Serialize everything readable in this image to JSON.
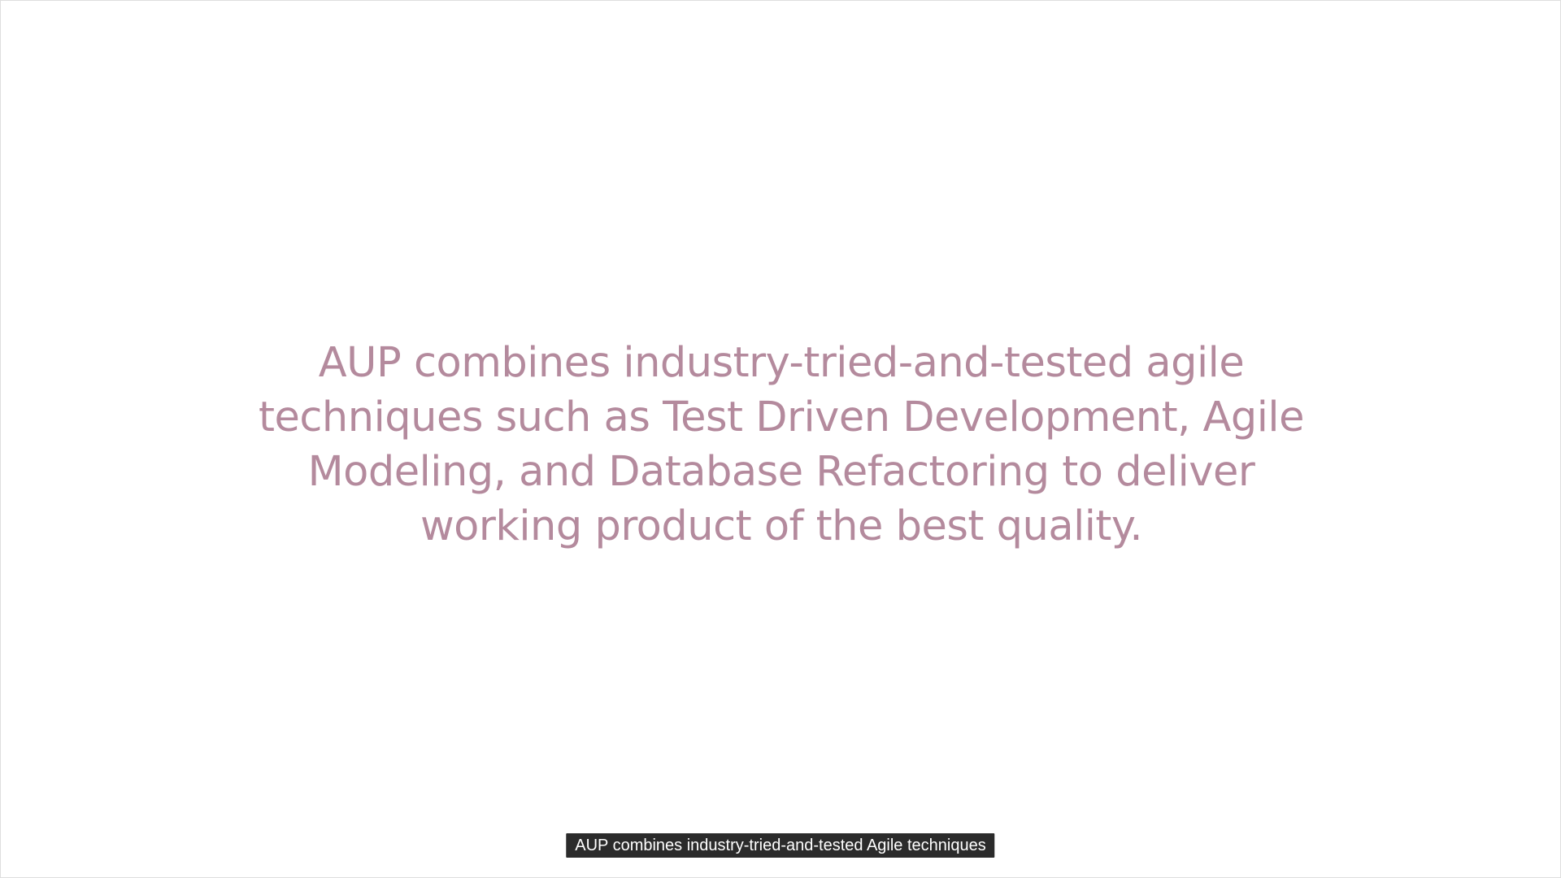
{
  "slide": {
    "lines": [
      "AUP combines industry-tried-and-tested agile",
      "techniques such as Test Driven Development, Agile",
      "Modeling, and Database Refactoring to deliver",
      "working product of the best quality."
    ]
  },
  "caption": {
    "text": "AUP combines industry-tried-and-tested Agile techniques"
  },
  "colors": {
    "slide_text": "#b48a9d",
    "caption_background": "#2b2b2b",
    "caption_text": "#ffffff",
    "background": "#ffffff"
  }
}
